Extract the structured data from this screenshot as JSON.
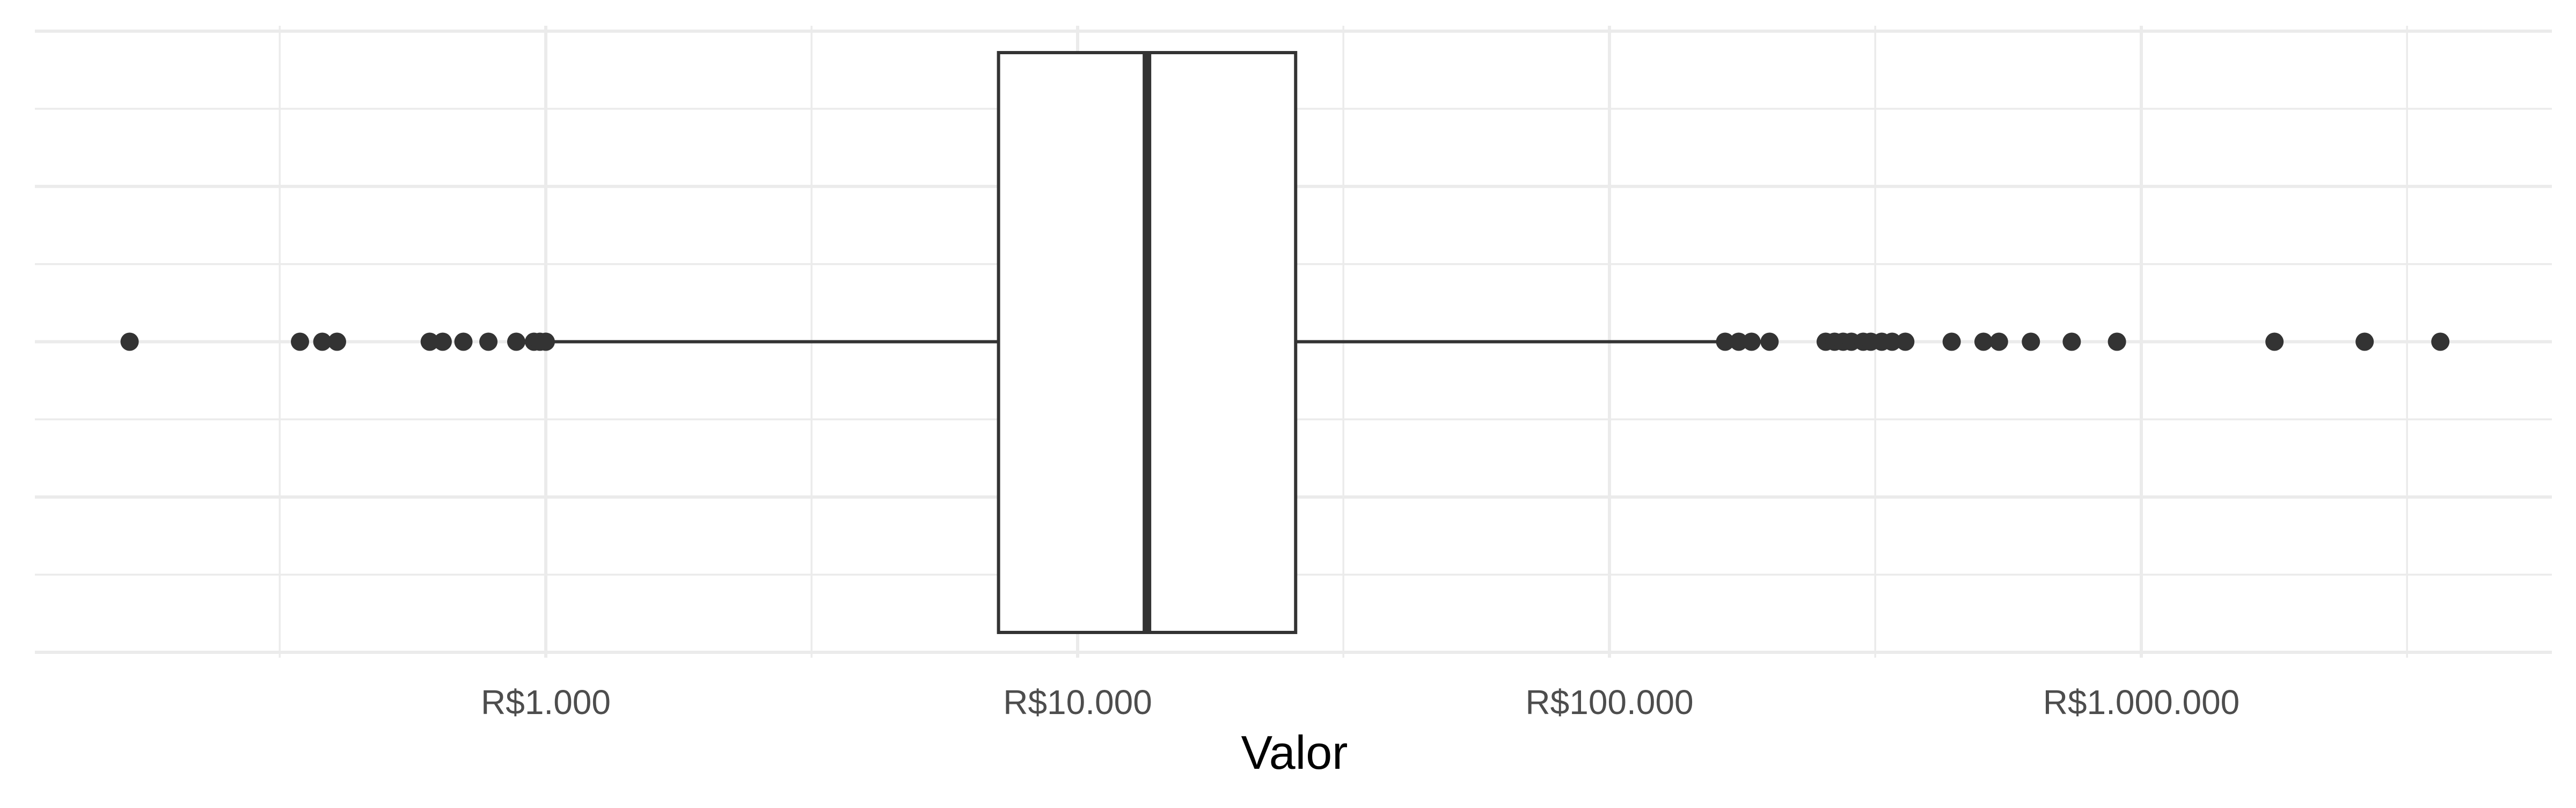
{
  "chart_data": {
    "type": "boxplot",
    "orientation": "horizontal",
    "xscale": "log10",
    "xlim": [
      50,
      6000000
    ],
    "xlabel": "Valor",
    "ylabel": "",
    "title": "",
    "grid": true,
    "x_ticks": [
      {
        "value": 1000,
        "label": "R$1.000"
      },
      {
        "value": 10000,
        "label": "R$10.000"
      },
      {
        "value": 100000,
        "label": "R$100.000"
      },
      {
        "value": 1000000,
        "label": "R$1.000.000"
      }
    ],
    "x_minor_gridlines": [
      316,
      3160,
      31600,
      316000,
      3160000
    ],
    "box": {
      "whisker_low": 1000,
      "q1": 7100,
      "median": 13500,
      "q3": 25700,
      "whisker_high": 165000
    },
    "outliers": [
      165,
      345,
      380,
      405,
      605,
      640,
      700,
      780,
      880,
      950,
      975,
      1000,
      165000,
      175000,
      185000,
      200000,
      255000,
      265000,
      275000,
      285000,
      300000,
      310000,
      325000,
      340000,
      360000,
      440000,
      505000,
      540000,
      620000,
      740000,
      900000,
      1780000,
      2630000,
      3650000
    ],
    "colors": {
      "box_fill": "#ffffff",
      "stroke": "#333333",
      "points": "#333333",
      "grid_major": "#ebebeb",
      "grid_minor": "#ebebeb",
      "background": "#ffffff"
    }
  }
}
